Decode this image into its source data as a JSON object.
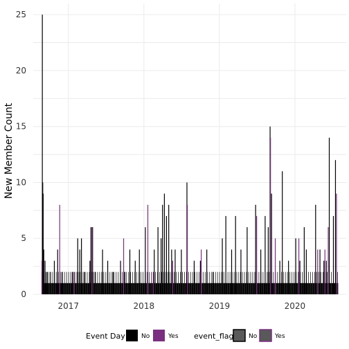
{
  "chart_data": {
    "type": "bar",
    "ylabel": "New Member Count",
    "xlabel": "",
    "ylim": [
      0,
      26
    ],
    "xlim": [
      "2016-07-15",
      "2020-09-05"
    ],
    "x_ticks": [
      {
        "label": "2017",
        "date": "2017-01-01"
      },
      {
        "label": "2018",
        "date": "2018-01-01"
      },
      {
        "label": "2019",
        "date": "2019-01-01"
      },
      {
        "label": "2020",
        "date": "2020-01-01"
      }
    ],
    "y_ticks": [
      0,
      5,
      10,
      15,
      20,
      25
    ],
    "grid": true,
    "legend_placement": "bottom",
    "legends": [
      {
        "title": "Event Day",
        "entries": [
          {
            "label": "No",
            "color": "#000000"
          },
          {
            "label": "Yes",
            "color": "#7b2d82"
          }
        ]
      },
      {
        "title": "event_flag",
        "entries": [
          {
            "label": "No",
            "color": "#555555"
          },
          {
            "label": "Yes",
            "color": "#555555"
          }
        ]
      }
    ],
    "series": [
      {
        "name": "No",
        "color": "#000000",
        "points": [
          [
            "2016-08-28",
            25
          ],
          [
            "2016-08-30",
            10
          ],
          [
            "2016-09-01",
            9
          ],
          [
            "2016-09-04",
            4
          ],
          [
            "2016-09-10",
            3
          ],
          [
            "2016-09-20",
            2
          ],
          [
            "2016-10-05",
            2
          ],
          [
            "2016-10-25",
            3
          ],
          [
            "2016-11-10",
            4
          ],
          [
            "2016-12-01",
            2
          ],
          [
            "2017-01-20",
            2
          ],
          [
            "2017-02-15",
            5
          ],
          [
            "2017-02-25",
            4
          ],
          [
            "2017-03-05",
            5
          ],
          [
            "2017-03-20",
            2
          ],
          [
            "2017-04-15",
            3
          ],
          [
            "2017-04-20",
            6
          ],
          [
            "2017-04-28",
            6
          ],
          [
            "2017-05-10",
            2
          ],
          [
            "2017-06-15",
            4
          ],
          [
            "2017-07-10",
            3
          ],
          [
            "2017-08-05",
            2
          ],
          [
            "2017-09-10",
            3
          ],
          [
            "2017-10-01",
            2
          ],
          [
            "2017-10-25",
            4
          ],
          [
            "2017-11-20",
            3
          ],
          [
            "2017-12-10",
            4
          ],
          [
            "2018-01-08",
            6
          ],
          [
            "2018-02-20",
            4
          ],
          [
            "2018-03-10",
            6
          ],
          [
            "2018-03-25",
            5
          ],
          [
            "2018-04-01",
            8
          ],
          [
            "2018-04-10",
            9
          ],
          [
            "2018-04-20",
            7
          ],
          [
            "2018-05-01",
            8
          ],
          [
            "2018-05-15",
            4
          ],
          [
            "2018-06-01",
            4
          ],
          [
            "2018-07-01",
            4
          ],
          [
            "2018-07-28",
            10
          ],
          [
            "2018-09-01",
            3
          ],
          [
            "2018-10-01",
            3
          ],
          [
            "2018-11-01",
            4
          ],
          [
            "2018-12-01",
            2
          ],
          [
            "2019-01-15",
            5
          ],
          [
            "2019-02-01",
            7
          ],
          [
            "2019-03-01",
            4
          ],
          [
            "2019-03-20",
            7
          ],
          [
            "2019-04-15",
            4
          ],
          [
            "2019-05-15",
            6
          ],
          [
            "2019-06-25",
            8
          ],
          [
            "2019-07-20",
            4
          ],
          [
            "2019-08-10",
            7
          ],
          [
            "2019-08-25",
            6
          ],
          [
            "2019-09-03",
            15
          ],
          [
            "2019-09-10",
            9
          ],
          [
            "2019-10-20",
            3
          ],
          [
            "2019-11-01",
            11
          ],
          [
            "2019-12-01",
            3
          ],
          [
            "2020-01-05",
            5
          ],
          [
            "2020-01-25",
            3
          ],
          [
            "2020-02-15",
            6
          ],
          [
            "2020-02-25",
            4
          ],
          [
            "2020-04-10",
            8
          ],
          [
            "2020-05-01",
            4
          ],
          [
            "2020-05-20",
            3
          ],
          [
            "2020-06-01",
            3
          ],
          [
            "2020-06-15",
            14
          ],
          [
            "2020-07-05",
            7
          ],
          [
            "2020-07-15",
            12
          ]
        ]
      },
      {
        "name": "Yes",
        "color": "#7b2d82",
        "points": [
          [
            "2016-08-26",
            3
          ],
          [
            "2016-11-20",
            8
          ],
          [
            "2017-01-28",
            2
          ],
          [
            "2017-04-25",
            6
          ],
          [
            "2017-09-25",
            5
          ],
          [
            "2018-01-20",
            8
          ],
          [
            "2018-02-15",
            2
          ],
          [
            "2018-05-20",
            3
          ],
          [
            "2018-07-30",
            8
          ],
          [
            "2018-10-05",
            4
          ],
          [
            "2019-06-30",
            7
          ],
          [
            "2019-09-05",
            14
          ],
          [
            "2019-09-28",
            5
          ],
          [
            "2020-01-20",
            5
          ],
          [
            "2020-04-20",
            4
          ],
          [
            "2020-05-25",
            4
          ],
          [
            "2020-06-10",
            6
          ],
          [
            "2020-07-20",
            9
          ]
        ]
      }
    ]
  }
}
